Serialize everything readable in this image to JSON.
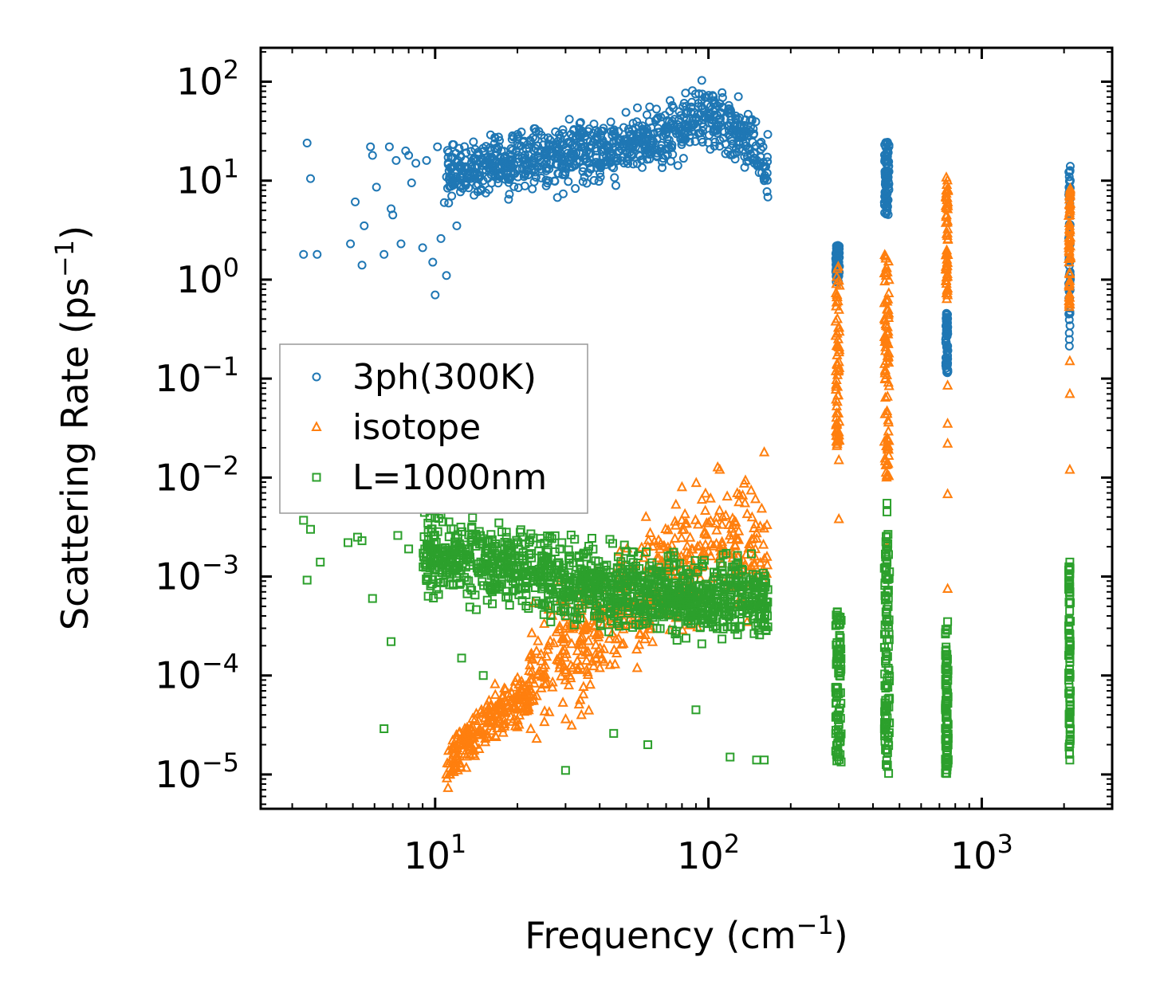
{
  "chart_data": {
    "type": "scatter",
    "title": "",
    "xlabel": {
      "text": "Frequency (cm",
      "sup": "−1",
      "close": ")"
    },
    "ylabel": {
      "text": "Scattering Rate (ps",
      "sup": "−1",
      "close": ")"
    },
    "x_scale": "log",
    "y_scale": "log",
    "xlim": [
      2.3,
      3000
    ],
    "ylim": [
      4.5e-06,
      220
    ],
    "x_ticks": [
      {
        "value": 10,
        "base": "10",
        "exp": "1"
      },
      {
        "value": 100,
        "base": "10",
        "exp": "2"
      },
      {
        "value": 1000,
        "base": "10",
        "exp": "3"
      }
    ],
    "y_ticks": [
      {
        "value": 1e-05,
        "base": "10",
        "exp": "−5"
      },
      {
        "value": 0.0001,
        "base": "10",
        "exp": "−4"
      },
      {
        "value": 0.001,
        "base": "10",
        "exp": "−3"
      },
      {
        "value": 0.01,
        "base": "10",
        "exp": "−2"
      },
      {
        "value": 0.1,
        "base": "10",
        "exp": "−1"
      },
      {
        "value": 1,
        "base": "10",
        "exp": "0"
      },
      {
        "value": 10,
        "base": "10",
        "exp": "1"
      },
      {
        "value": 100,
        "base": "10",
        "exp": "2"
      }
    ],
    "legend_position": "center-left",
    "series": [
      {
        "name": "3ph(300K)",
        "marker": "circle",
        "color": "#1f77b4",
        "points": [
          [
            3.3,
            1.8
          ],
          [
            3.4,
            24
          ],
          [
            3.5,
            10.5
          ],
          [
            3.7,
            1.8
          ],
          [
            4.9,
            2.3
          ],
          [
            5.1,
            6.1
          ],
          [
            5.4,
            1.4
          ],
          [
            5.5,
            3.5
          ],
          [
            5.8,
            22
          ],
          [
            5.9,
            18
          ],
          [
            6.1,
            8.6
          ],
          [
            6.5,
            1.8
          ],
          [
            6.8,
            22
          ],
          [
            6.9,
            5.2
          ],
          [
            7.0,
            4.5
          ],
          [
            7.2,
            16
          ],
          [
            7.5,
            2.3
          ],
          [
            7.8,
            20
          ],
          [
            8.0,
            18
          ],
          [
            8.2,
            9.5
          ],
          [
            8.5,
            15
          ],
          [
            9.0,
            2.1
          ],
          [
            9.3,
            16
          ],
          [
            9.8,
            1.5
          ],
          [
            10.0,
            0.7
          ],
          [
            10.2,
            22
          ],
          [
            10.5,
            2.6
          ],
          [
            10.8,
            6.0
          ],
          [
            11.0,
            1.1
          ],
          [
            11.5,
            7.0
          ],
          [
            12,
            3.5
          ],
          [
            13,
            12
          ],
          [
            15,
            10
          ],
          [
            18,
            15
          ],
          [
            22,
            18
          ],
          [
            28,
            20
          ],
          [
            35,
            22
          ],
          [
            45,
            25
          ],
          [
            60,
            28
          ],
          [
            75,
            35
          ],
          [
            95,
            75
          ],
          [
            110,
            60
          ],
          [
            130,
            35
          ],
          [
            150,
            15
          ],
          [
            160,
            10
          ],
          [
            300,
            1.5
          ],
          [
            450,
            12
          ],
          [
            750,
            0.3
          ],
          [
            2100,
            3.5
          ]
        ],
        "bands": [
          {
            "x_range": [
              11,
              165
            ],
            "y_trend": [
              [
                11,
                12
              ],
              [
                30,
                18
              ],
              [
                60,
                26
              ],
              [
                100,
                45
              ],
              [
                140,
                28
              ],
              [
                165,
                12
              ]
            ],
            "spread_decades": 0.45,
            "count": 900
          },
          {
            "x_range": [
              292,
              302
            ],
            "y_range": [
              0.9,
              2.3
            ],
            "count": 60
          },
          {
            "x_range": [
              440,
              458
            ],
            "y_range": [
              4.5,
              25
            ],
            "count": 80
          },
          {
            "x_range": [
              738,
              752
            ],
            "y_range": [
              0.11,
              0.48
            ],
            "count": 60
          },
          {
            "x_range": [
              2080,
              2110
            ],
            "y_range": [
              0.2,
              14
            ],
            "count": 60
          }
        ]
      },
      {
        "name": "isotope",
        "marker": "triangle",
        "color": "#ff7f0e",
        "points": [
          [
            11,
            1e-05
          ],
          [
            14,
            2e-05
          ],
          [
            17,
            5e-05
          ],
          [
            20,
            3e-05
          ],
          [
            25,
            0.0001
          ],
          [
            30,
            0.0003
          ],
          [
            50,
            0.001
          ],
          [
            60,
            0.002
          ],
          [
            80,
            0.008
          ],
          [
            110,
            0.012
          ],
          [
            160,
            0.018
          ],
          [
            300,
            0.0038
          ],
          [
            300,
            0.015
          ],
          [
            450,
            0.002
          ],
          [
            750,
            0.00075
          ],
          [
            750,
            0.0068
          ],
          [
            750,
            0.022
          ],
          [
            750,
            0.035
          ],
          [
            750,
            0.085
          ],
          [
            2100,
            0.012
          ],
          [
            2100,
            0.07
          ],
          [
            2100,
            0.15
          ]
        ],
        "bands": [
          {
            "x_range": [
              11,
              22
            ],
            "y_trend": [
              [
                11,
                1.2e-05
              ],
              [
                16,
                4e-05
              ],
              [
                22,
                6e-05
              ]
            ],
            "spread_decades": 0.35,
            "count": 220
          },
          {
            "x_range": [
              22,
              165
            ],
            "y_trend": [
              [
                22,
                0.0001
              ],
              [
                40,
                0.0003
              ],
              [
                70,
                0.001
              ],
              [
                100,
                0.002
              ],
              [
                165,
                0.002
              ]
            ],
            "spread_decades": 0.9,
            "count": 500
          },
          {
            "x_range": [
              292,
              302
            ],
            "y_range": [
              0.02,
              1.4
            ],
            "count": 70
          },
          {
            "x_range": [
              440,
              458
            ],
            "y_range": [
              0.01,
              1.8
            ],
            "count": 90
          },
          {
            "x_range": [
              738,
              752
            ],
            "y_range": [
              0.5,
              11
            ],
            "count": 60
          },
          {
            "x_range": [
              2080,
              2110
            ],
            "y_range": [
              0.5,
              8.5
            ],
            "count": 60
          }
        ]
      },
      {
        "name": "L=1000nm",
        "marker": "square",
        "color": "#2ca02c",
        "points": [
          [
            3.3,
            0.0037
          ],
          [
            3.4,
            0.00092
          ],
          [
            3.5,
            0.003
          ],
          [
            3.8,
            0.0014
          ],
          [
            4.8,
            0.0022
          ],
          [
            5.2,
            0.0025
          ],
          [
            5.4,
            0.0023
          ],
          [
            5.9,
            0.0006
          ],
          [
            6.5,
            2.9e-05
          ],
          [
            6.9,
            0.00022
          ],
          [
            7.3,
            0.0026
          ],
          [
            8.0,
            0.0019
          ],
          [
            10.5,
            0.0043
          ],
          [
            12.5,
            0.00015
          ],
          [
            15,
            0.0001
          ],
          [
            30,
            1.1e-05
          ],
          [
            45,
            2.6e-05
          ],
          [
            60,
            2e-05
          ],
          [
            90,
            4.5e-05
          ],
          [
            120,
            1.5e-05
          ],
          [
            150,
            1.4e-05
          ],
          [
            160,
            1.4e-05
          ],
          [
            450,
            0.0055
          ],
          [
            450,
            0.0045
          ],
          [
            750,
            0.00035
          ],
          [
            2100,
            0.0014
          ],
          [
            2100,
            1.4e-05
          ]
        ],
        "bands": [
          {
            "x_range": [
              9,
              165
            ],
            "y_trend": [
              [
                9,
                0.0018
              ],
              [
                20,
                0.0012
              ],
              [
                40,
                0.0008
              ],
              [
                80,
                0.0006
              ],
              [
                165,
                0.0006
              ]
            ],
            "spread_decades": 0.55,
            "count": 1200
          },
          {
            "x_range": [
              292,
              306
            ],
            "y_range": [
              1.2e-05,
              0.00045
            ],
            "count": 90
          },
          {
            "x_range": [
              440,
              460
            ],
            "y_range": [
              1e-05,
              0.003
            ],
            "count": 120
          },
          {
            "x_range": [
              736,
              754
            ],
            "y_range": [
              1e-05,
              0.0003
            ],
            "count": 90
          },
          {
            "x_range": [
              2080,
              2110
            ],
            "y_range": [
              1.5e-05,
              0.0013
            ],
            "count": 90
          }
        ]
      }
    ]
  }
}
